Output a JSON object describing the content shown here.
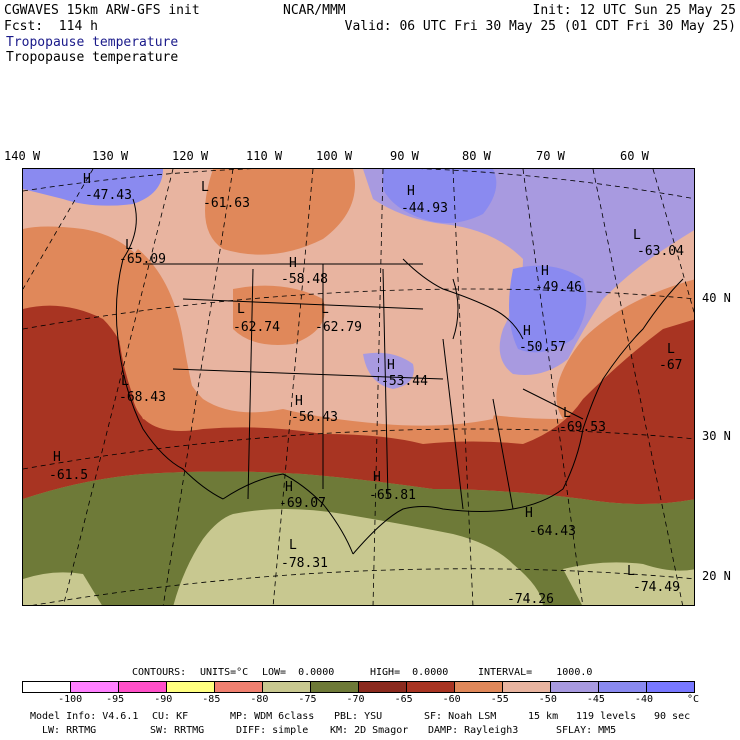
{
  "header": {
    "model": "CGWAVES 15km ARW-GFS init",
    "forecast": "Fcst:  114 h",
    "org": "NCAR/MMM",
    "init": "Init: 12 UTC Sun 25 May 25",
    "valid": "Valid: 06 UTC Fri 30 May 25 (01 CDT Fri 30 May 25)",
    "field_title_1": "Tropopause temperature",
    "field_title_2": "Tropopause temperature"
  },
  "longitudes": [
    "140 W",
    "130 W",
    "120 W",
    "110 W",
    "100 W",
    "90 W",
    "80 W",
    "70 W",
    "60 W"
  ],
  "latitudes": [
    "40 N",
    "30 N",
    "20 N"
  ],
  "highs_lows": [
    {
      "kind": "H",
      "value": "-47.43"
    },
    {
      "kind": "L",
      "value": "-61.63"
    },
    {
      "kind": "H",
      "value": "-44.93"
    },
    {
      "kind": "L",
      "value": "-63.04"
    },
    {
      "kind": "L",
      "value": "-65.09"
    },
    {
      "kind": "H",
      "value": "-58.48"
    },
    {
      "kind": "H",
      "value": "-49.46"
    },
    {
      "kind": "L",
      "value": "-62.74"
    },
    {
      "kind": "L",
      "value": "-62.79"
    },
    {
      "kind": "H",
      "value": "-50.57"
    },
    {
      "kind": "L",
      "value": "-67"
    },
    {
      "kind": "H",
      "value": "-53.44"
    },
    {
      "kind": "L",
      "value": "-68.43"
    },
    {
      "kind": "H",
      "value": "-56.43"
    },
    {
      "kind": "L",
      "value": "-69.53"
    },
    {
      "kind": "H",
      "value": "-61.5"
    },
    {
      "kind": "H",
      "value": "-69.07"
    },
    {
      "kind": "H",
      "value": "-65.81"
    },
    {
      "kind": "H",
      "value": "-64.43"
    },
    {
      "kind": "L",
      "value": "-78.31"
    },
    {
      "kind": "L",
      "value": "-74.49"
    },
    {
      "kind": "L",
      "value": "-74.26"
    }
  ],
  "contour_info": {
    "contours": "CONTOURS:",
    "units": "UNITS=°C",
    "low": "LOW=  0.0000",
    "high": "HIGH=  0.0000",
    "interval": "INTERVAL=    1000.0"
  },
  "colorbar": {
    "colors": [
      "#ffffff",
      "#ff80ff",
      "#ff50c8",
      "#ffff80",
      "#f08070",
      "#c8c890",
      "#6e7a38",
      "#8b2a1e",
      "#a83422",
      "#e0885a",
      "#e8b4a0",
      "#a89ae0",
      "#8a8af0",
      "#7878ff"
    ],
    "labels": [
      "-100",
      "-95",
      "-90",
      "-85",
      "-80",
      "-75",
      "-70",
      "-65",
      "-60",
      "-55",
      "-50",
      "-45",
      "-40",
      "°C"
    ]
  },
  "footer": {
    "line1": [
      "Model Info: V4.6.1",
      "CU: KF",
      "MP: WDM 6class",
      "PBL: YSU",
      "SF: Noah LSM",
      "15 km",
      "119 levels",
      "90 sec"
    ],
    "line2": [
      "LW: RRTMG",
      "SW: RRTMG",
      "DIFF: simple",
      "KM: 2D Smagor",
      "DAMP: Rayleigh3",
      "SFLAY: MM5"
    ]
  }
}
